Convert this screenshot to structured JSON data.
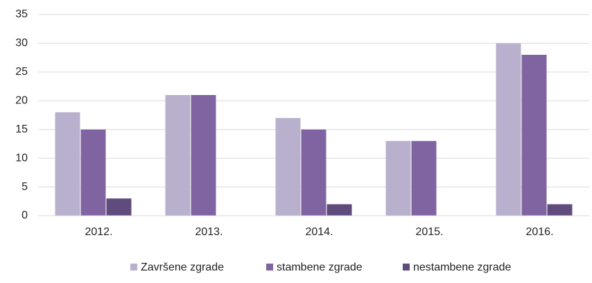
{
  "chart_data": {
    "type": "bar",
    "categories": [
      "2012.",
      "2013.",
      "2014.",
      "2015.",
      "2016."
    ],
    "series": [
      {
        "name": "Završene zgrade",
        "color": "#b8b0cc",
        "values": [
          18,
          21,
          17,
          13,
          30
        ]
      },
      {
        "name": "stambene zgrade",
        "color": "#8064a2",
        "values": [
          15,
          21,
          15,
          13,
          28
        ]
      },
      {
        "name": "nestambene zgrade",
        "color": "#604b7d",
        "values": [
          3,
          0,
          2,
          0,
          2
        ]
      }
    ],
    "ylim": [
      0,
      35
    ],
    "yticks": [
      0,
      5,
      10,
      15,
      20,
      25,
      30,
      35
    ],
    "grid": true,
    "legend": "bottom"
  }
}
